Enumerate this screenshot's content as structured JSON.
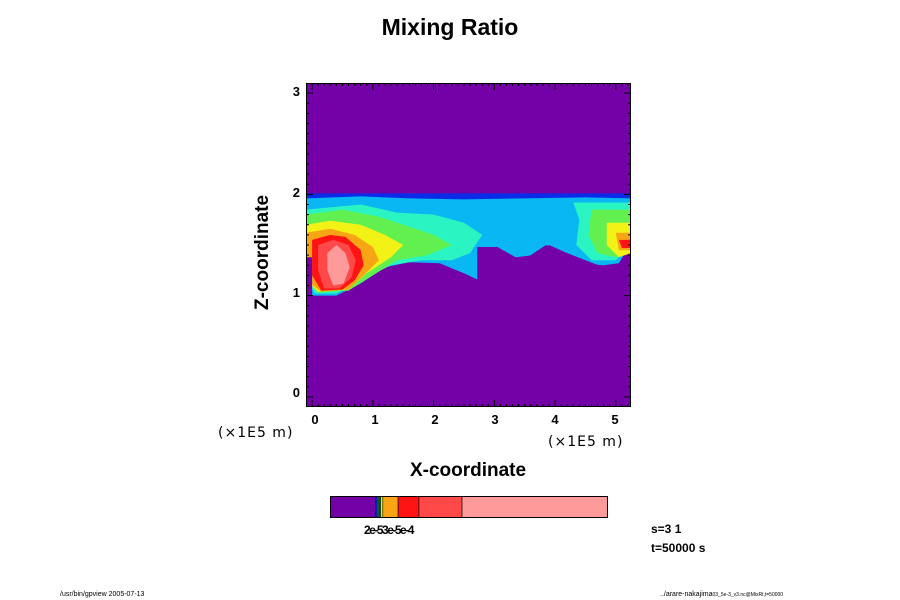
{
  "chart_data": {
    "type": "heatmap",
    "title": "Mixing Ratio",
    "xlabel": "X-coordinate",
    "ylabel": "Z-coordinate",
    "x_unit": "(×1E5 m)",
    "y_unit": "(×1E5 m)",
    "xlim": [
      -0.1,
      5.25
    ],
    "ylim": [
      -0.1,
      3.1
    ],
    "x_ticks": [
      "0",
      "1",
      "2",
      "3",
      "4",
      "5"
    ],
    "y_ticks": [
      "0",
      "1",
      "2",
      "3"
    ],
    "background_color": "#7400a8",
    "regions": [
      {
        "color": "#0a2ce8",
        "points": [
          [
            -0.1,
            2.01
          ],
          [
            5.25,
            2.01
          ],
          [
            5.25,
            1.9
          ],
          [
            -0.1,
            1.9
          ]
        ]
      },
      {
        "color": "#09b8f2",
        "points": [
          [
            -0.1,
            1.96
          ],
          [
            0.8,
            1.98
          ],
          [
            1.6,
            1.96
          ],
          [
            2.5,
            1.95
          ],
          [
            3.5,
            1.96
          ],
          [
            4.5,
            1.97
          ],
          [
            5.25,
            1.96
          ],
          [
            5.25,
            1.52
          ],
          [
            5.05,
            1.32
          ],
          [
            4.8,
            1.3
          ],
          [
            4.4,
            1.32
          ],
          [
            4.1,
            1.42
          ],
          [
            3.85,
            1.5
          ],
          [
            3.6,
            1.4
          ],
          [
            3.3,
            1.3
          ],
          [
            3.0,
            1.22
          ],
          [
            2.75,
            1.15
          ],
          [
            2.5,
            1.22
          ],
          [
            2.1,
            1.32
          ],
          [
            1.6,
            1.33
          ],
          [
            1.2,
            1.28
          ],
          [
            0.8,
            1.12
          ],
          [
            0.4,
            1.0
          ],
          [
            0.0,
            1.0
          ],
          [
            -0.1,
            1.1
          ]
        ]
      },
      {
        "color": "#2af5c2",
        "points": [
          [
            -0.1,
            1.85
          ],
          [
            0.8,
            1.9
          ],
          [
            1.4,
            1.82
          ],
          [
            2.0,
            1.8
          ],
          [
            2.5,
            1.72
          ],
          [
            2.8,
            1.6
          ],
          [
            2.6,
            1.42
          ],
          [
            2.3,
            1.35
          ],
          [
            1.8,
            1.35
          ],
          [
            1.3,
            1.3
          ],
          [
            0.8,
            1.15
          ],
          [
            0.4,
            1.02
          ],
          [
            0.05,
            1.02
          ],
          [
            -0.1,
            1.15
          ]
        ]
      },
      {
        "color": "#2af5c2",
        "points": [
          [
            4.3,
            1.92
          ],
          [
            5.25,
            1.92
          ],
          [
            5.25,
            1.5
          ],
          [
            5.0,
            1.35
          ],
          [
            4.6,
            1.35
          ],
          [
            4.35,
            1.5
          ],
          [
            4.4,
            1.75
          ]
        ]
      },
      {
        "color": "#62f050",
        "points": [
          [
            -0.1,
            1.8
          ],
          [
            0.5,
            1.85
          ],
          [
            1.1,
            1.78
          ],
          [
            1.6,
            1.68
          ],
          [
            2.0,
            1.6
          ],
          [
            2.3,
            1.5
          ],
          [
            1.9,
            1.4
          ],
          [
            1.4,
            1.35
          ],
          [
            1.0,
            1.2
          ],
          [
            0.6,
            1.05
          ],
          [
            0.1,
            1.03
          ],
          [
            -0.1,
            1.15
          ]
        ]
      },
      {
        "color": "#62f050",
        "points": [
          [
            4.6,
            1.85
          ],
          [
            5.25,
            1.85
          ],
          [
            5.25,
            1.45
          ],
          [
            5.0,
            1.38
          ],
          [
            4.7,
            1.42
          ],
          [
            4.55,
            1.6
          ]
        ]
      },
      {
        "color": "#f2f216",
        "points": [
          [
            -0.1,
            1.7
          ],
          [
            0.3,
            1.74
          ],
          [
            0.8,
            1.7
          ],
          [
            1.2,
            1.6
          ],
          [
            1.5,
            1.5
          ],
          [
            1.3,
            1.38
          ],
          [
            0.9,
            1.22
          ],
          [
            0.6,
            1.06
          ],
          [
            0.1,
            1.04
          ],
          [
            -0.1,
            1.15
          ]
        ]
      },
      {
        "color": "#f2f216",
        "points": [
          [
            4.85,
            1.72
          ],
          [
            5.25,
            1.72
          ],
          [
            5.25,
            1.42
          ],
          [
            5.05,
            1.38
          ],
          [
            4.85,
            1.5
          ]
        ]
      },
      {
        "color": "#f7a514",
        "points": [
          [
            -0.1,
            1.62
          ],
          [
            0.3,
            1.66
          ],
          [
            0.7,
            1.6
          ],
          [
            1.0,
            1.48
          ],
          [
            1.1,
            1.35
          ],
          [
            0.85,
            1.2
          ],
          [
            0.6,
            1.06
          ],
          [
            0.15,
            1.04
          ],
          [
            -0.1,
            1.15
          ]
        ]
      },
      {
        "color": "#f7a514",
        "points": [
          [
            5.0,
            1.62
          ],
          [
            5.25,
            1.62
          ],
          [
            5.25,
            1.45
          ],
          [
            5.05,
            1.45
          ]
        ]
      },
      {
        "color": "#ff1414",
        "points": [
          [
            0.0,
            1.55
          ],
          [
            0.3,
            1.6
          ],
          [
            0.55,
            1.58
          ],
          [
            0.8,
            1.45
          ],
          [
            0.85,
            1.3
          ],
          [
            0.7,
            1.15
          ],
          [
            0.5,
            1.06
          ],
          [
            0.15,
            1.05
          ],
          [
            0.0,
            1.2
          ]
        ]
      },
      {
        "color": "#ff1414",
        "points": [
          [
            5.05,
            1.55
          ],
          [
            5.25,
            1.55
          ],
          [
            5.25,
            1.47
          ],
          [
            5.1,
            1.47
          ]
        ]
      },
      {
        "color": "#ff4848",
        "points": [
          [
            0.1,
            1.5
          ],
          [
            0.35,
            1.55
          ],
          [
            0.6,
            1.5
          ],
          [
            0.72,
            1.35
          ],
          [
            0.65,
            1.18
          ],
          [
            0.45,
            1.07
          ],
          [
            0.2,
            1.07
          ],
          [
            0.1,
            1.25
          ]
        ]
      },
      {
        "color": "#ff9a9a",
        "points": [
          [
            0.25,
            1.42
          ],
          [
            0.4,
            1.5
          ],
          [
            0.55,
            1.42
          ],
          [
            0.62,
            1.28
          ],
          [
            0.52,
            1.12
          ],
          [
            0.35,
            1.1
          ],
          [
            0.25,
            1.25
          ]
        ]
      },
      {
        "color": "#7400a8",
        "points": [
          [
            0.0,
            1.38
          ],
          [
            0.0,
            1.0
          ],
          [
            -0.1,
            1.0
          ],
          [
            -0.1,
            1.38
          ]
        ]
      },
      {
        "color": "#7400a8",
        "points": [
          [
            2.72,
            1.48
          ],
          [
            3.05,
            1.48
          ],
          [
            3.35,
            1.38
          ],
          [
            3.65,
            1.4
          ],
          [
            3.9,
            1.5
          ],
          [
            4.2,
            1.42
          ],
          [
            4.5,
            1.35
          ],
          [
            4.8,
            1.28
          ],
          [
            5.25,
            1.28
          ],
          [
            5.25,
            1.0
          ],
          [
            2.72,
            1.0
          ]
        ]
      }
    ],
    "colorbar": {
      "colors": [
        "#7400a8",
        "#0a2ce8",
        "#09b8f2",
        "#2af5c2",
        "#62f050",
        "#f2f216",
        "#f7a514",
        "#ff1414",
        "#ff4848",
        "#ff9a9a"
      ],
      "boundaries": [
        0,
        1.65,
        1.7,
        1.74,
        1.78,
        1.82,
        1.9,
        2.45,
        3.2,
        4.75,
        10.0
      ],
      "label": "2e-53e-5e-4"
    },
    "annotations": {
      "s": "s=3 1",
      "t": "t=50000 s"
    }
  },
  "footer": {
    "left": "/usr/bin/gpview 2005-07-13",
    "right_main": "../arare-nakajima",
    "right_small": "03_5e-3_v3.nc@MixRt,t=50000"
  }
}
